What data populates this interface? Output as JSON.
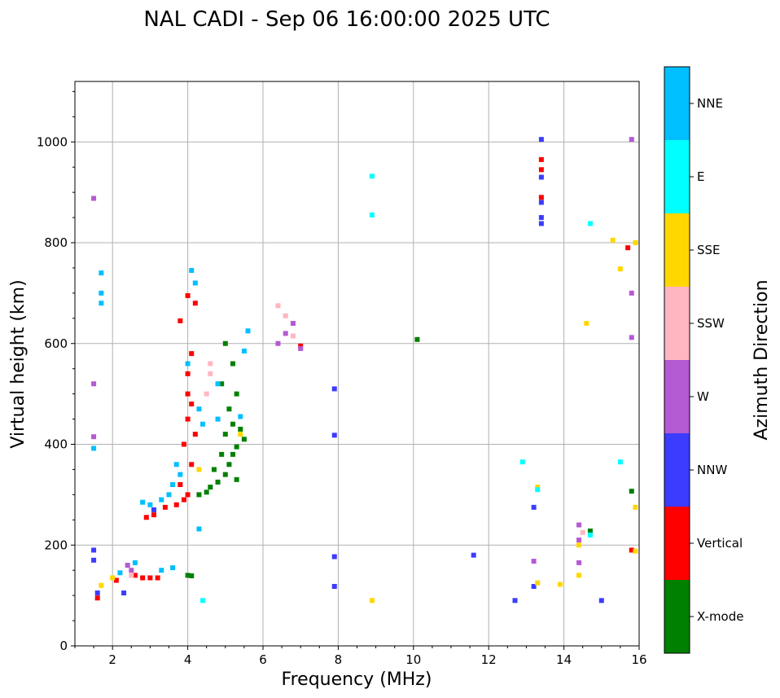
{
  "chart_data": {
    "type": "scatter",
    "title": "NAL CADI - Sep 06 16:00:00 2025 UTC",
    "xlabel": "Frequency (MHz)",
    "ylabel": "Virtual height (km)",
    "xlim": [
      1,
      16
    ],
    "ylim": [
      0,
      1120
    ],
    "xticks": [
      2,
      4,
      6,
      8,
      10,
      12,
      14,
      16
    ],
    "yticks": [
      0,
      200,
      400,
      600,
      800,
      1000
    ],
    "grid": true,
    "colorbar": {
      "title": "Azimuth Direction",
      "categories": [
        {
          "label": "X-mode",
          "color": "#008000"
        },
        {
          "label": "Vertical",
          "color": "#ff0000"
        },
        {
          "label": "NNW",
          "color": "#3c3cff"
        },
        {
          "label": "W",
          "color": "#b45ad2"
        },
        {
          "label": "SSW",
          "color": "#ffb6c1"
        },
        {
          "label": "SSE",
          "color": "#ffd700"
        },
        {
          "label": "E",
          "color": "#00ffff"
        },
        {
          "label": "NNE",
          "color": "#00bfff"
        }
      ]
    },
    "series": [
      {
        "name": "X-mode",
        "points": [
          [
            4.0,
            140
          ],
          [
            4.1,
            139
          ],
          [
            4.3,
            300
          ],
          [
            4.5,
            305
          ],
          [
            4.6,
            315
          ],
          [
            4.8,
            325
          ],
          [
            5.0,
            340
          ],
          [
            5.1,
            360
          ],
          [
            5.2,
            380
          ],
          [
            5.3,
            395
          ],
          [
            5.0,
            420
          ],
          [
            5.2,
            440
          ],
          [
            5.1,
            470
          ],
          [
            5.3,
            500
          ],
          [
            4.9,
            520
          ],
          [
            5.2,
            560
          ],
          [
            5.0,
            600
          ],
          [
            5.4,
            430
          ],
          [
            5.5,
            410
          ],
          [
            4.7,
            350
          ],
          [
            4.9,
            380
          ],
          [
            5.3,
            330
          ],
          [
            10.1,
            608
          ],
          [
            15.8,
            307
          ],
          [
            14.7,
            228
          ]
        ]
      },
      {
        "name": "Vertical",
        "points": [
          [
            1.6,
            95
          ],
          [
            2.1,
            130
          ],
          [
            2.6,
            140
          ],
          [
            2.8,
            135
          ],
          [
            3.0,
            135
          ],
          [
            3.2,
            135
          ],
          [
            2.9,
            255
          ],
          [
            3.1,
            260
          ],
          [
            3.4,
            275
          ],
          [
            3.7,
            280
          ],
          [
            3.9,
            290
          ],
          [
            4.0,
            300
          ],
          [
            3.8,
            320
          ],
          [
            4.1,
            360
          ],
          [
            3.9,
            400
          ],
          [
            4.2,
            420
          ],
          [
            4.0,
            450
          ],
          [
            4.1,
            480
          ],
          [
            4.0,
            500
          ],
          [
            4.0,
            540
          ],
          [
            4.1,
            580
          ],
          [
            4.2,
            680
          ],
          [
            4.0,
            695
          ],
          [
            3.8,
            645
          ],
          [
            7.0,
            595
          ],
          [
            13.4,
            965
          ],
          [
            13.4,
            945
          ],
          [
            13.4,
            890
          ],
          [
            15.7,
            790
          ],
          [
            15.8,
            190
          ]
        ]
      },
      {
        "name": "NNW",
        "points": [
          [
            1.5,
            190
          ],
          [
            1.5,
            170
          ],
          [
            1.6,
            105
          ],
          [
            2.3,
            105
          ],
          [
            3.1,
            270
          ],
          [
            7.9,
            418
          ],
          [
            7.9,
            510
          ],
          [
            7.9,
            177
          ],
          [
            7.9,
            118
          ],
          [
            11.6,
            180
          ],
          [
            12.7,
            90
          ],
          [
            13.2,
            118
          ],
          [
            13.2,
            275
          ],
          [
            13.4,
            1005
          ],
          [
            13.4,
            930
          ],
          [
            13.4,
            880
          ],
          [
            13.4,
            850
          ],
          [
            13.4,
            838
          ],
          [
            15.0,
            90
          ]
        ]
      },
      {
        "name": "W",
        "points": [
          [
            1.5,
            888
          ],
          [
            1.5,
            520
          ],
          [
            1.5,
            415
          ],
          [
            2.4,
            160
          ],
          [
            2.5,
            150
          ],
          [
            6.4,
            600
          ],
          [
            6.6,
            620
          ],
          [
            6.8,
            640
          ],
          [
            7.0,
            590
          ],
          [
            13.2,
            168
          ],
          [
            14.4,
            240
          ],
          [
            14.4,
            210
          ],
          [
            14.4,
            165
          ],
          [
            15.8,
            1005
          ],
          [
            15.8,
            700
          ],
          [
            15.8,
            612
          ]
        ]
      },
      {
        "name": "SSW",
        "points": [
          [
            2.5,
            140
          ],
          [
            4.6,
            560
          ],
          [
            4.6,
            540
          ],
          [
            4.5,
            500
          ],
          [
            6.4,
            675
          ],
          [
            6.6,
            655
          ],
          [
            6.8,
            615
          ],
          [
            14.5,
            225
          ]
        ]
      },
      {
        "name": "SSE",
        "points": [
          [
            1.7,
            120
          ],
          [
            2.0,
            135
          ],
          [
            4.3,
            350
          ],
          [
            5.4,
            420
          ],
          [
            8.9,
            90
          ],
          [
            13.3,
            125
          ],
          [
            13.3,
            315
          ],
          [
            13.9,
            122
          ],
          [
            14.4,
            200
          ],
          [
            14.4,
            140
          ],
          [
            14.6,
            640
          ],
          [
            15.3,
            805
          ],
          [
            15.5,
            748
          ],
          [
            15.9,
            800
          ],
          [
            15.9,
            275
          ],
          [
            15.9,
            188
          ]
        ]
      },
      {
        "name": "E",
        "points": [
          [
            4.4,
            90
          ],
          [
            8.9,
            855
          ],
          [
            8.9,
            932
          ],
          [
            12.9,
            365
          ],
          [
            13.3,
            310
          ],
          [
            14.7,
            838
          ],
          [
            14.7,
            220
          ],
          [
            15.5,
            365
          ]
        ]
      },
      {
        "name": "NNE",
        "points": [
          [
            1.5,
            392
          ],
          [
            1.7,
            740
          ],
          [
            1.7,
            700
          ],
          [
            1.7,
            680
          ],
          [
            2.2,
            145
          ],
          [
            2.6,
            165
          ],
          [
            3.3,
            150
          ],
          [
            3.6,
            155
          ],
          [
            2.8,
            285
          ],
          [
            3.0,
            280
          ],
          [
            3.3,
            290
          ],
          [
            3.5,
            300
          ],
          [
            3.6,
            320
          ],
          [
            3.8,
            340
          ],
          [
            3.7,
            360
          ],
          [
            4.1,
            745
          ],
          [
            4.2,
            720
          ],
          [
            4.0,
            560
          ],
          [
            4.3,
            470
          ],
          [
            4.4,
            440
          ],
          [
            4.8,
            450
          ],
          [
            4.8,
            520
          ],
          [
            5.5,
            585
          ],
          [
            5.4,
            455
          ],
          [
            4.3,
            232
          ],
          [
            5.6,
            625
          ]
        ]
      }
    ]
  }
}
